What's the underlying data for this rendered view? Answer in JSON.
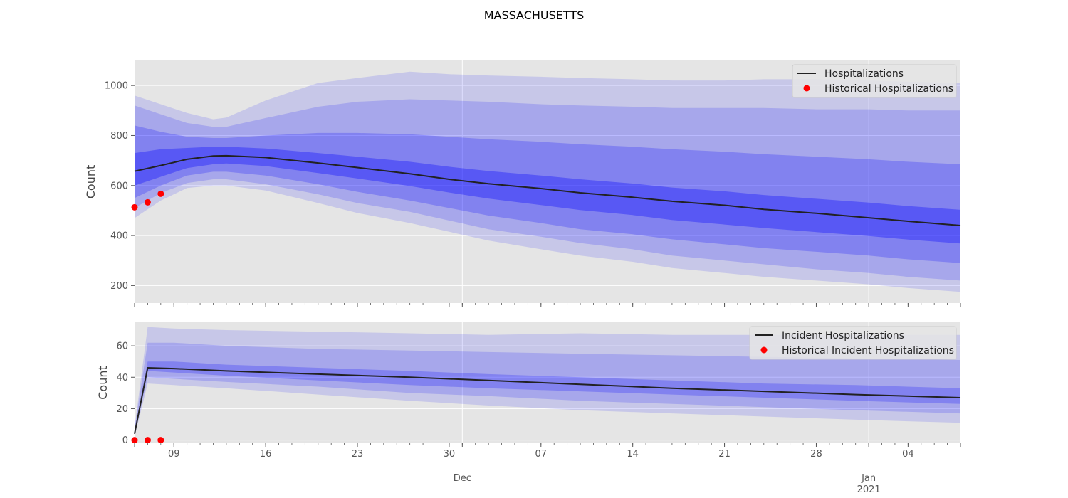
{
  "title": "MASSACHUSETTS",
  "colors": {
    "background": "#e5e5e5",
    "grid": "#ffffff",
    "band": "#0000ff",
    "line": "#222222",
    "historical": "#ff0000"
  },
  "x_axis": {
    "start": "2020-11-06",
    "end": "2021-01-08",
    "major_ticks": [
      {
        "date": "2020-11-09",
        "label": "09"
      },
      {
        "date": "2020-11-16",
        "label": "16"
      },
      {
        "date": "2020-11-23",
        "label": "23"
      },
      {
        "date": "2020-11-30",
        "label": "30"
      },
      {
        "date": "2020-12-07",
        "label": "07"
      },
      {
        "date": "2020-12-14",
        "label": "14"
      },
      {
        "date": "2020-12-21",
        "label": "21"
      },
      {
        "date": "2020-12-28",
        "label": "28"
      },
      {
        "date": "2021-01-04",
        "label": "04"
      }
    ],
    "month_ticks": [
      {
        "date": "2020-12-01",
        "label": "Dec",
        "sublabel": ""
      },
      {
        "date": "2021-01-01",
        "label": "Jan",
        "sublabel": "2021"
      }
    ]
  },
  "chart_data": [
    {
      "type": "area",
      "ylabel": "Count",
      "ylim": [
        130,
        1100
      ],
      "yticks": [
        200,
        400,
        600,
        800,
        1000
      ],
      "grid": true,
      "legend_position": "top-right",
      "legend": [
        "Hospitalizations",
        "Historical Hospitalizations"
      ],
      "series": [
        {
          "name": "Hospitalizations",
          "x": [
            "2020-11-06",
            "2020-11-08",
            "2020-11-10",
            "2020-11-12",
            "2020-11-13",
            "2020-11-16",
            "2020-11-20",
            "2020-11-23",
            "2020-11-27",
            "2020-11-30",
            "2020-12-03",
            "2020-12-07",
            "2020-12-10",
            "2020-12-14",
            "2020-12-17",
            "2020-12-21",
            "2020-12-24",
            "2020-12-28",
            "2021-01-01",
            "2021-01-04",
            "2021-01-08"
          ],
          "values": [
            657,
            680,
            705,
            718,
            719,
            712,
            690,
            672,
            647,
            625,
            607,
            588,
            571,
            553,
            537,
            521,
            505,
            489,
            471,
            457,
            440
          ]
        }
      ],
      "bands": {
        "x": [
          "2020-11-06",
          "2020-11-08",
          "2020-11-10",
          "2020-11-12",
          "2020-11-13",
          "2020-11-16",
          "2020-11-20",
          "2020-11-23",
          "2020-11-27",
          "2020-11-30",
          "2020-12-03",
          "2020-12-07",
          "2020-12-10",
          "2020-12-14",
          "2020-12-17",
          "2020-12-21",
          "2020-12-24",
          "2020-12-28",
          "2021-01-01",
          "2021-01-04",
          "2021-01-08"
        ],
        "lower": [
          [
            470,
            540,
            590,
            600,
            600,
            580,
            530,
            490,
            450,
            415,
            380,
            345,
            320,
            295,
            270,
            250,
            235,
            220,
            205,
            190,
            175
          ],
          [
            510,
            570,
            610,
            625,
            625,
            605,
            565,
            530,
            495,
            460,
            425,
            395,
            370,
            345,
            320,
            300,
            285,
            265,
            250,
            235,
            220
          ],
          [
            550,
            600,
            640,
            655,
            655,
            640,
            605,
            575,
            540,
            510,
            480,
            450,
            425,
            405,
            385,
            365,
            350,
            335,
            320,
            305,
            290
          ],
          [
            600,
            635,
            670,
            685,
            688,
            678,
            650,
            628,
            598,
            572,
            548,
            522,
            502,
            482,
            462,
            444,
            430,
            414,
            398,
            384,
            368
          ]
        ],
        "upper": [
          [
            960,
            925,
            890,
            865,
            872,
            940,
            1010,
            1030,
            1055,
            1045,
            1040,
            1035,
            1030,
            1025,
            1020,
            1020,
            1025,
            1025,
            1020,
            1015,
            1010
          ],
          [
            920,
            885,
            850,
            835,
            835,
            870,
            915,
            935,
            945,
            940,
            935,
            925,
            920,
            915,
            910,
            910,
            910,
            905,
            905,
            900,
            900
          ],
          [
            840,
            815,
            795,
            790,
            790,
            800,
            810,
            810,
            805,
            795,
            785,
            775,
            765,
            755,
            745,
            735,
            725,
            715,
            705,
            695,
            685
          ],
          [
            730,
            745,
            750,
            755,
            755,
            748,
            730,
            715,
            695,
            675,
            658,
            640,
            625,
            608,
            592,
            577,
            562,
            547,
            532,
            518,
            503
          ]
        ]
      },
      "historical": {
        "name": "Historical Hospitalizations",
        "x": [
          "2020-11-06",
          "2020-11-07",
          "2020-11-08"
        ],
        "values": [
          513,
          533,
          567
        ]
      }
    },
    {
      "type": "area",
      "ylabel": "Count",
      "ylim": [
        -2,
        75
      ],
      "yticks": [
        0,
        20,
        40,
        60
      ],
      "grid": true,
      "legend_position": "top-right",
      "legend": [
        "Incident Hospitalizations",
        "Historical Incident Hospitalizations"
      ],
      "series": [
        {
          "name": "Incident Hospitalizations",
          "x": [
            "2020-11-06",
            "2020-11-07",
            "2020-11-09",
            "2020-11-13",
            "2020-11-20",
            "2020-11-27",
            "2020-12-03",
            "2020-12-10",
            "2020-12-17",
            "2020-12-24",
            "2020-12-31",
            "2021-01-08"
          ],
          "values": [
            4,
            46,
            45.5,
            44,
            42,
            40,
            38,
            35.5,
            33,
            31,
            29,
            27
          ]
        }
      ],
      "bands": {
        "x": [
          "2020-11-06",
          "2020-11-07",
          "2020-11-09",
          "2020-11-13",
          "2020-11-20",
          "2020-11-27",
          "2020-12-03",
          "2020-12-10",
          "2020-12-17",
          "2020-12-24",
          "2020-12-31",
          "2021-01-08"
        ],
        "lower": [
          [
            2,
            36,
            35,
            33,
            29,
            25,
            22,
            19,
            17,
            15,
            13,
            11
          ],
          [
            3,
            40,
            39,
            37,
            34,
            30,
            28,
            25,
            23,
            21,
            19,
            17
          ],
          [
            4,
            44,
            43,
            41,
            38,
            35,
            33,
            31,
            29,
            27,
            25,
            23
          ]
        ],
        "upper": [
          [
            8,
            72,
            71,
            70,
            69,
            68,
            67,
            68,
            67,
            67,
            67,
            67
          ],
          [
            7,
            62,
            62,
            60,
            58,
            57,
            56,
            55,
            54,
            53,
            52,
            51
          ],
          [
            5,
            50,
            50,
            48,
            46,
            44,
            42,
            40,
            38,
            36,
            35,
            33
          ]
        ]
      },
      "historical": {
        "name": "Historical Incident Hospitalizations",
        "x": [
          "2020-11-06",
          "2020-11-07",
          "2020-11-08"
        ],
        "values": [
          0,
          0,
          0
        ]
      }
    }
  ]
}
